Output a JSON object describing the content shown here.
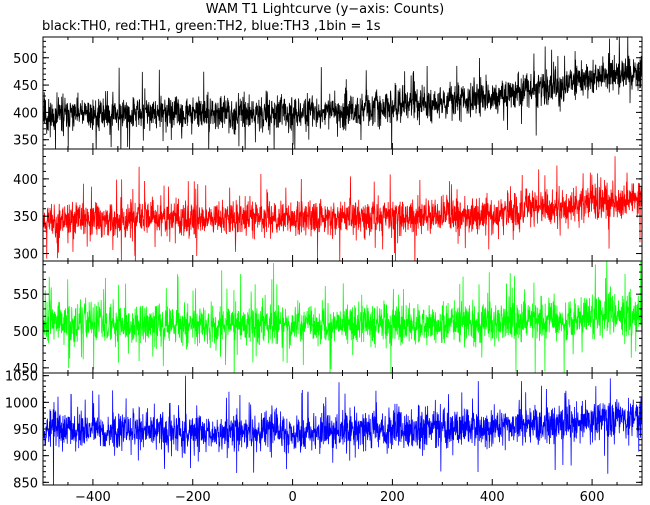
{
  "chart_data": {
    "type": "line",
    "title": "WAM T1 Lightcurve (y−axis: Counts)",
    "subtitle": "black:TH0, red:TH1, green:TH2, blue:TH3 ,1bin = 1s",
    "xlabel": "",
    "ylabel": "",
    "xlim": [
      -500,
      700
    ],
    "x_ticks": [
      -400,
      -200,
      0,
      200,
      400,
      600
    ],
    "x_tick_labels": [
      "−400",
      "−200",
      "0",
      "200",
      "400",
      "600"
    ],
    "bin_seconds": 1,
    "grid": false,
    "legend": "none",
    "panels": [
      {
        "channel": "TH0",
        "color": "#000000",
        "ylim": [
          333,
          538
        ],
        "y_ticks": [
          350,
          400,
          450,
          500
        ],
        "trend": {
          "x": [
            -500,
            -300,
            0,
            100,
            200,
            300,
            400,
            500,
            600,
            700
          ],
          "y": [
            395,
            398,
            399,
            403,
            410,
            420,
            428,
            445,
            462,
            475
          ]
        },
        "noise_amplitude": 28,
        "spike_chance": 0.04,
        "seed": 11
      },
      {
        "channel": "TH1",
        "color": "#ff0000",
        "ylim": [
          290,
          440
        ],
        "y_ticks": [
          300,
          350,
          400
        ],
        "trend": {
          "x": [
            -500,
            -200,
            0,
            200,
            400,
            500,
            600,
            700
          ],
          "y": [
            345,
            347,
            348,
            350,
            353,
            360,
            368,
            375
          ]
        },
        "noise_amplitude": 22,
        "spike_chance": 0.04,
        "seed": 23
      },
      {
        "channel": "TH2",
        "color": "#00ff00",
        "ylim": [
          443,
          595
        ],
        "y_ticks": [
          450,
          500,
          550
        ],
        "trend": {
          "x": [
            -500,
            -200,
            0,
            200,
            400,
            500,
            600,
            700
          ],
          "y": [
            512,
            508,
            507,
            509,
            511,
            515,
            518,
            522
          ]
        },
        "noise_amplitude": 25,
        "spike_chance": 0.04,
        "seed": 37
      },
      {
        "channel": "TH3",
        "color": "#0000ff",
        "ylim": [
          845,
          1055
        ],
        "y_ticks": [
          850,
          900,
          950,
          1000,
          1050
        ],
        "trend": {
          "x": [
            -500,
            -200,
            0,
            200,
            400,
            500,
            600,
            700
          ],
          "y": [
            950,
            945,
            944,
            948,
            952,
            958,
            965,
            975
          ]
        },
        "noise_amplitude": 33,
        "spike_chance": 0.04,
        "seed": 53
      }
    ]
  }
}
